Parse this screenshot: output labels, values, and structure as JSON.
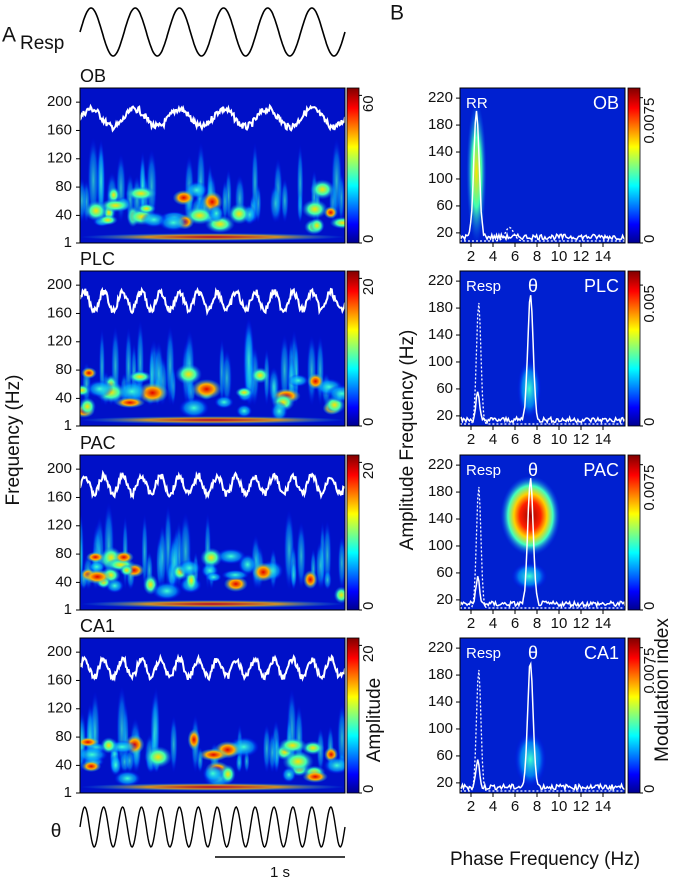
{
  "panel_a": {
    "label": "A",
    "resp_label": "Resp",
    "theta_label": "θ",
    "scale_bar": "1 s",
    "y_label": "Frequency (Hz)",
    "colorbar_label": "Amplitude",
    "ylim": [
      1,
      220
    ],
    "yticks": [
      1,
      40,
      80,
      120,
      160,
      200
    ],
    "plots": [
      {
        "title": "OB",
        "cbar_lim": [
          0,
          63
        ],
        "cbar_ticks": [
          0,
          60
        ]
      },
      {
        "title": "PLC",
        "cbar_lim": [
          0,
          21
        ],
        "cbar_ticks": [
          0,
          20
        ]
      },
      {
        "title": "PAC",
        "cbar_lim": [
          0,
          21
        ],
        "cbar_ticks": [
          0,
          20
        ]
      },
      {
        "title": "CA1",
        "cbar_lim": [
          0,
          21
        ],
        "cbar_ticks": [
          0,
          20
        ]
      }
    ]
  },
  "panel_b": {
    "label": "B",
    "y_label": "Amplitude Frequency (Hz)",
    "x_label": "Phase Frequency (Hz)",
    "colorbar_label": "Modulation index",
    "xlim": [
      1,
      16
    ],
    "xticks": [
      2,
      4,
      6,
      8,
      10,
      12,
      14
    ],
    "ylim": [
      5,
      235
    ],
    "yticks": [
      20,
      60,
      100,
      140,
      180,
      220
    ],
    "plots": [
      {
        "title": "OB",
        "annotations": [
          "RR"
        ],
        "cbar_lim": [
          0,
          0.008
        ],
        "cbar_ticks": [
          0,
          0.0075
        ]
      },
      {
        "title": "PLC",
        "annotations": [
          "Resp",
          "θ"
        ],
        "cbar_lim": [
          0,
          0.0055
        ],
        "cbar_ticks": [
          0,
          0.005
        ]
      },
      {
        "title": "PAC",
        "annotations": [
          "Resp",
          "θ"
        ],
        "cbar_lim": [
          0,
          0.008
        ],
        "cbar_ticks": [
          0,
          0.0075
        ]
      },
      {
        "title": "CA1",
        "annotations": [
          "Resp",
          "θ"
        ],
        "cbar_lim": [
          0,
          0.008
        ],
        "cbar_ticks": [
          0,
          0.0075
        ]
      }
    ]
  }
}
